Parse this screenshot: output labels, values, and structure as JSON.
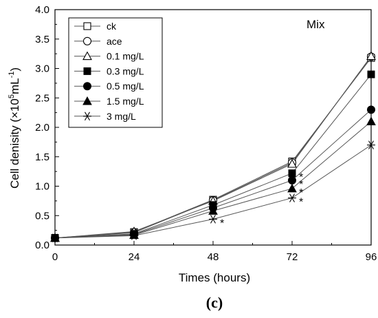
{
  "chart_data": {
    "type": "line",
    "panel_label": "(c)",
    "annotation": "Mix",
    "xlabel": "Times (hours)",
    "ylabel_main": "Cell denisity (×10",
    "ylabel_sup1": "5",
    "ylabel_mid": "mL",
    "ylabel_sup2": "-1",
    "ylabel_end": ")",
    "x": [
      0,
      24,
      48,
      72,
      96
    ],
    "x_ticks": [
      "0",
      "24",
      "48",
      "72",
      "96"
    ],
    "y_ticks": [
      "0.0",
      "0.5",
      "1.0",
      "1.5",
      "2.0",
      "2.5",
      "3.0",
      "3.5",
      "4.0"
    ],
    "xlim": [
      0,
      96
    ],
    "ylim": [
      0,
      4.0
    ],
    "legend_position": "top-left",
    "significance_mark": "*",
    "series": [
      {
        "name": "ck",
        "marker": "open-square",
        "values": [
          0.12,
          0.22,
          0.77,
          1.42,
          3.18
        ],
        "sig": [
          false,
          false,
          false,
          false,
          false
        ]
      },
      {
        "name": "ace",
        "marker": "open-circle",
        "values": [
          0.12,
          0.21,
          0.76,
          1.4,
          3.2
        ],
        "sig": [
          false,
          false,
          false,
          false,
          false
        ]
      },
      {
        "name": "0.1 mg/L",
        "marker": "open-triangle",
        "values": [
          0.12,
          0.23,
          0.75,
          1.38,
          3.21
        ],
        "sig": [
          false,
          false,
          false,
          false,
          false
        ]
      },
      {
        "name": "0.3 mg/L",
        "marker": "filled-square",
        "values": [
          0.12,
          0.19,
          0.68,
          1.22,
          2.9
        ],
        "sig": [
          false,
          false,
          false,
          true,
          true
        ]
      },
      {
        "name": "0.5 mg/L",
        "marker": "filled-circle",
        "values": [
          0.12,
          0.18,
          0.63,
          1.1,
          2.3
        ],
        "sig": [
          false,
          false,
          false,
          true,
          true
        ]
      },
      {
        "name": "1.5 mg/L",
        "marker": "filled-triangle",
        "values": [
          0.12,
          0.17,
          0.58,
          0.96,
          2.1
        ],
        "sig": [
          false,
          false,
          false,
          true,
          true
        ]
      },
      {
        "name": "3 mg/L",
        "marker": "asterisk",
        "values": [
          0.12,
          0.16,
          0.44,
          0.8,
          1.7
        ],
        "sig": [
          false,
          false,
          true,
          true,
          true
        ]
      }
    ]
  }
}
